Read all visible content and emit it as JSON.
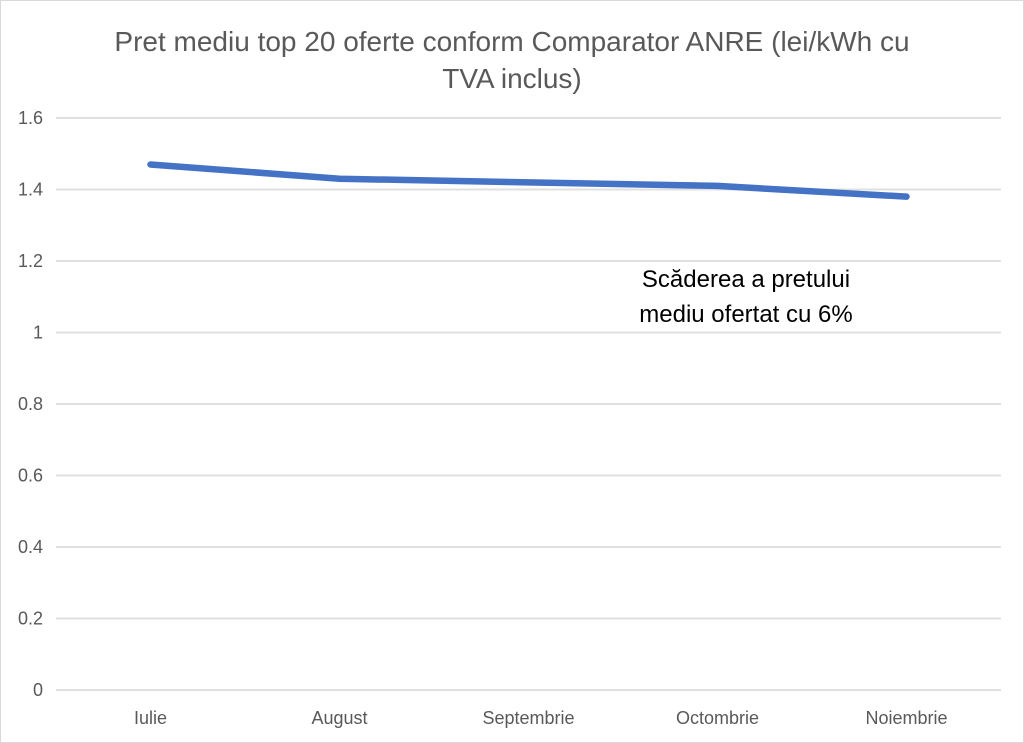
{
  "header": {
    "title_lines": [
      "Pret mediu top 20 oferte conform Comparator ANRE (lei/kWh cu",
      "TVA inclus)"
    ]
  },
  "annotation": {
    "lines": [
      "Scăderea a pretului",
      "mediu ofertat cu 6%"
    ]
  },
  "chart_data": {
    "type": "line",
    "title": "Pret mediu top 20 oferte conform Comparator ANRE (lei/kWh cu TVA inclus)",
    "categories": [
      "Iulie",
      "August",
      "Septembrie",
      "Octombrie",
      "Noiembrie"
    ],
    "series": [
      {
        "name": "Pret mediu top 20 oferte (lei/kWh cu TVA inclus)",
        "values": [
          1.47,
          1.43,
          1.42,
          1.41,
          1.38
        ]
      }
    ],
    "xlabel": "",
    "ylabel": "",
    "ylim": [
      0,
      1.6
    ],
    "ytick_step": 0.2,
    "ytick_labels": [
      "0",
      "0.2",
      "0.4",
      "0.6",
      "0.8",
      "1",
      "1.2",
      "1.4",
      "1.6"
    ],
    "grid": true,
    "legend_position": "none",
    "annotations": [
      "Scăderea a pretului mediu ofertat cu 6%"
    ],
    "colors": {
      "line": "#4472C4",
      "gridline": "#E0E0E0",
      "axis_text": "#595959",
      "title_text": "#595959",
      "annotation_text": "#000000",
      "background": "#FFFFFF"
    }
  }
}
